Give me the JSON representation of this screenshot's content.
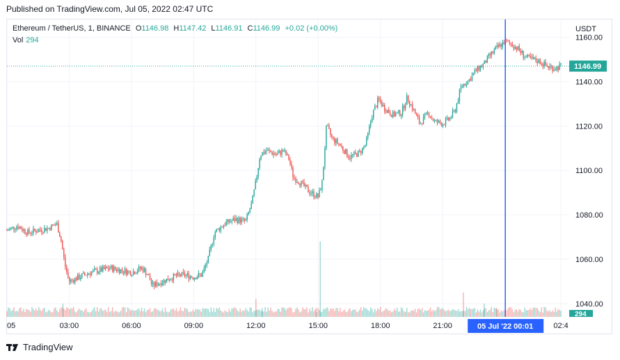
{
  "published": "Published on TradingView.com, Jul 05, 2022 02:47 UTC",
  "legend": {
    "symbol": "Ethereum / TetherUS, 1, BINANCE",
    "open_label": "O",
    "open": "1146.98",
    "high_label": "H",
    "high": "1147.42",
    "low_label": "L",
    "low": "1146.91",
    "close_label": "C",
    "close": "1146.99",
    "change": "+0.02 (+0.00%)",
    "vol_label": "Vol",
    "vol": "294"
  },
  "footer": {
    "brand": "TradingView",
    "logo_icon": "tradingview-logo-icon"
  },
  "colors": {
    "up": "#26a69a",
    "down": "#ef5350",
    "crosshair": "#2962ff",
    "grid": "#f0f3fa",
    "axis_text": "#131722"
  },
  "chart_data": {
    "type": "candlestick",
    "title": "Ethereum / TetherUS, 1, BINANCE",
    "currency": "USDT",
    "ylim": [
      1034,
      1168
    ],
    "y_ticks": [
      "1040.00",
      "1060.00",
      "1080.00",
      "1100.00",
      "1120.00",
      "1140.00",
      "1160.00"
    ],
    "x_ticks": [
      "05",
      "03:00",
      "06:00",
      "09:00",
      "12:00",
      "15:00",
      "18:00",
      "21:00",
      "02:4"
    ],
    "x_tick_times": [
      0,
      3,
      6,
      9,
      12,
      15,
      18,
      21,
      26.7
    ],
    "x_range_hours": [
      0,
      27.1
    ],
    "last_price_label": "1146.99",
    "last_price": 1146.99,
    "volume_label": "294",
    "crosshair_label": "05 Jul '22   00:01",
    "crosshair_time_hours": 24.02,
    "price_path": [
      [
        0.0,
        1073
      ],
      [
        0.5,
        1075
      ],
      [
        1.0,
        1072
      ],
      [
        1.5,
        1073
      ],
      [
        2.0,
        1074
      ],
      [
        2.4,
        1076
      ],
      [
        2.6,
        1069
      ],
      [
        2.8,
        1057
      ],
      [
        3.0,
        1050
      ],
      [
        3.5,
        1052
      ],
      [
        4.0,
        1054
      ],
      [
        4.5,
        1055
      ],
      [
        5.0,
        1056
      ],
      [
        5.5,
        1055
      ],
      [
        6.0,
        1054
      ],
      [
        6.5,
        1056
      ],
      [
        6.8,
        1053
      ],
      [
        7.0,
        1048
      ],
      [
        7.5,
        1050
      ],
      [
        8.0,
        1052
      ],
      [
        8.5,
        1053
      ],
      [
        9.0,
        1052
      ],
      [
        9.4,
        1053
      ],
      [
        9.7,
        1060
      ],
      [
        10.0,
        1072
      ],
      [
        10.5,
        1076
      ],
      [
        11.0,
        1078
      ],
      [
        11.5,
        1077
      ],
      [
        11.8,
        1085
      ],
      [
        12.0,
        1095
      ],
      [
        12.2,
        1107
      ],
      [
        12.5,
        1109
      ],
      [
        13.0,
        1107
      ],
      [
        13.3,
        1109
      ],
      [
        13.6,
        1105
      ],
      [
        13.8,
        1097
      ],
      [
        14.2,
        1094
      ],
      [
        14.5,
        1091
      ],
      [
        15.0,
        1088
      ],
      [
        15.2,
        1095
      ],
      [
        15.4,
        1120
      ],
      [
        15.7,
        1114
      ],
      [
        16.0,
        1112
      ],
      [
        16.5,
        1106
      ],
      [
        17.0,
        1108
      ],
      [
        17.3,
        1112
      ],
      [
        17.6,
        1125
      ],
      [
        17.9,
        1132
      ],
      [
        18.2,
        1128
      ],
      [
        18.6,
        1125
      ],
      [
        19.0,
        1126
      ],
      [
        19.3,
        1133
      ],
      [
        19.6,
        1127
      ],
      [
        19.9,
        1121
      ],
      [
        20.3,
        1126
      ],
      [
        20.6,
        1122
      ],
      [
        21.0,
        1121
      ],
      [
        21.3,
        1123
      ],
      [
        21.6,
        1127
      ],
      [
        21.9,
        1138
      ],
      [
        22.3,
        1141
      ],
      [
        22.6,
        1145
      ],
      [
        23.0,
        1148
      ],
      [
        23.3,
        1152
      ],
      [
        23.6,
        1155
      ],
      [
        24.0,
        1158
      ],
      [
        24.3,
        1157
      ],
      [
        24.6,
        1155
      ],
      [
        25.0,
        1151
      ],
      [
        25.3,
        1150
      ],
      [
        25.7,
        1149
      ],
      [
        26.0,
        1147
      ],
      [
        26.4,
        1146
      ],
      [
        26.7,
        1147
      ]
    ],
    "volume_spikes": [
      [
        2.7,
        1040
      ],
      [
        12.0,
        1042
      ],
      [
        12.3,
        1038
      ],
      [
        14.9,
        1038
      ],
      [
        15.1,
        1068
      ],
      [
        22.0,
        1045
      ],
      [
        23.0,
        1040
      ],
      [
        23.6,
        1038
      ]
    ]
  }
}
